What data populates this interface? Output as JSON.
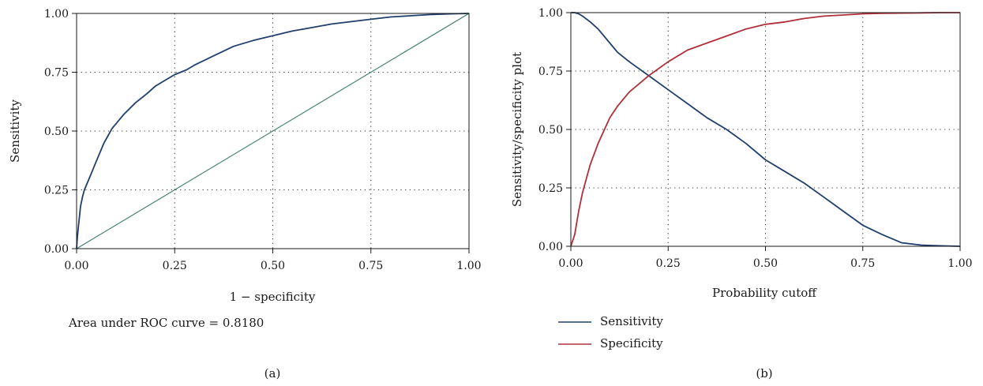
{
  "chart_data": [
    {
      "panel_label": "(a)",
      "type": "line",
      "title": "",
      "xlabel": "1 − specificity",
      "ylabel": "Sensitivity",
      "xlim": [
        0,
        1
      ],
      "ylim": [
        0,
        1
      ],
      "xticks": [
        "0.00",
        "0.25",
        "0.50",
        "0.75",
        "1.00"
      ],
      "yticks": [
        "0.00",
        "0.25",
        "0.50",
        "0.75",
        "1.00"
      ],
      "grid": true,
      "annotation": "Area under ROC curve = 0.8180",
      "colors": {
        "roc": "#1f3f6e",
        "reference": "#3c7a68"
      },
      "series": [
        {
          "id": "roc",
          "x": [
            0,
            0.002,
            0.005,
            0.01,
            0.015,
            0.02,
            0.03,
            0.04,
            0.05,
            0.06,
            0.07,
            0.08,
            0.09,
            0.1,
            0.12,
            0.15,
            0.18,
            0.2,
            0.22,
            0.25,
            0.28,
            0.3,
            0.35,
            0.4,
            0.45,
            0.5,
            0.55,
            0.6,
            0.65,
            0.7,
            0.75,
            0.8,
            0.85,
            0.9,
            0.95,
            1.0
          ],
          "y": [
            0,
            0.05,
            0.1,
            0.18,
            0.22,
            0.25,
            0.29,
            0.33,
            0.37,
            0.41,
            0.45,
            0.48,
            0.51,
            0.53,
            0.57,
            0.62,
            0.66,
            0.69,
            0.71,
            0.74,
            0.76,
            0.78,
            0.82,
            0.86,
            0.885,
            0.905,
            0.925,
            0.94,
            0.955,
            0.965,
            0.975,
            0.985,
            0.99,
            0.995,
            0.998,
            1.0
          ]
        },
        {
          "id": "reference",
          "x": [
            0,
            1
          ],
          "y": [
            0,
            1
          ]
        }
      ]
    },
    {
      "panel_label": "(b)",
      "type": "line",
      "title": "",
      "xlabel": "Probability cutoff",
      "ylabel": "Sensitivity/specificity plot",
      "xlim": [
        0,
        1
      ],
      "ylim": [
        0,
        1
      ],
      "xticks": [
        "0.00",
        "0.25",
        "0.50",
        "0.75",
        "1.00"
      ],
      "yticks": [
        "0.00",
        "0.25",
        "0.50",
        "0.75",
        "1.00"
      ],
      "grid": true,
      "legend_position": "bottom-left",
      "series": [
        {
          "name": "Sensitivity",
          "color": "#1f3f6e",
          "x": [
            0,
            0.01,
            0.02,
            0.03,
            0.05,
            0.07,
            0.1,
            0.12,
            0.15,
            0.2,
            0.25,
            0.3,
            0.35,
            0.4,
            0.45,
            0.5,
            0.55,
            0.6,
            0.65,
            0.7,
            0.75,
            0.8,
            0.85,
            0.9,
            0.95,
            1.0
          ],
          "y": [
            1.0,
            1.0,
            0.995,
            0.985,
            0.96,
            0.93,
            0.87,
            0.83,
            0.79,
            0.73,
            0.67,
            0.61,
            0.55,
            0.5,
            0.44,
            0.37,
            0.32,
            0.27,
            0.21,
            0.15,
            0.09,
            0.05,
            0.015,
            0.005,
            0.002,
            0.0
          ]
        },
        {
          "name": "Specificity",
          "color": "#b0303a",
          "x": [
            0,
            0.01,
            0.02,
            0.03,
            0.05,
            0.07,
            0.1,
            0.12,
            0.15,
            0.2,
            0.25,
            0.3,
            0.35,
            0.4,
            0.45,
            0.5,
            0.55,
            0.6,
            0.65,
            0.7,
            0.75,
            0.8,
            0.85,
            0.9,
            0.95,
            1.0
          ],
          "y": [
            0.0,
            0.05,
            0.15,
            0.23,
            0.35,
            0.44,
            0.55,
            0.6,
            0.66,
            0.73,
            0.79,
            0.84,
            0.87,
            0.9,
            0.93,
            0.95,
            0.96,
            0.975,
            0.985,
            0.99,
            0.995,
            0.997,
            0.998,
            0.999,
            1.0,
            1.0
          ]
        }
      ]
    }
  ]
}
